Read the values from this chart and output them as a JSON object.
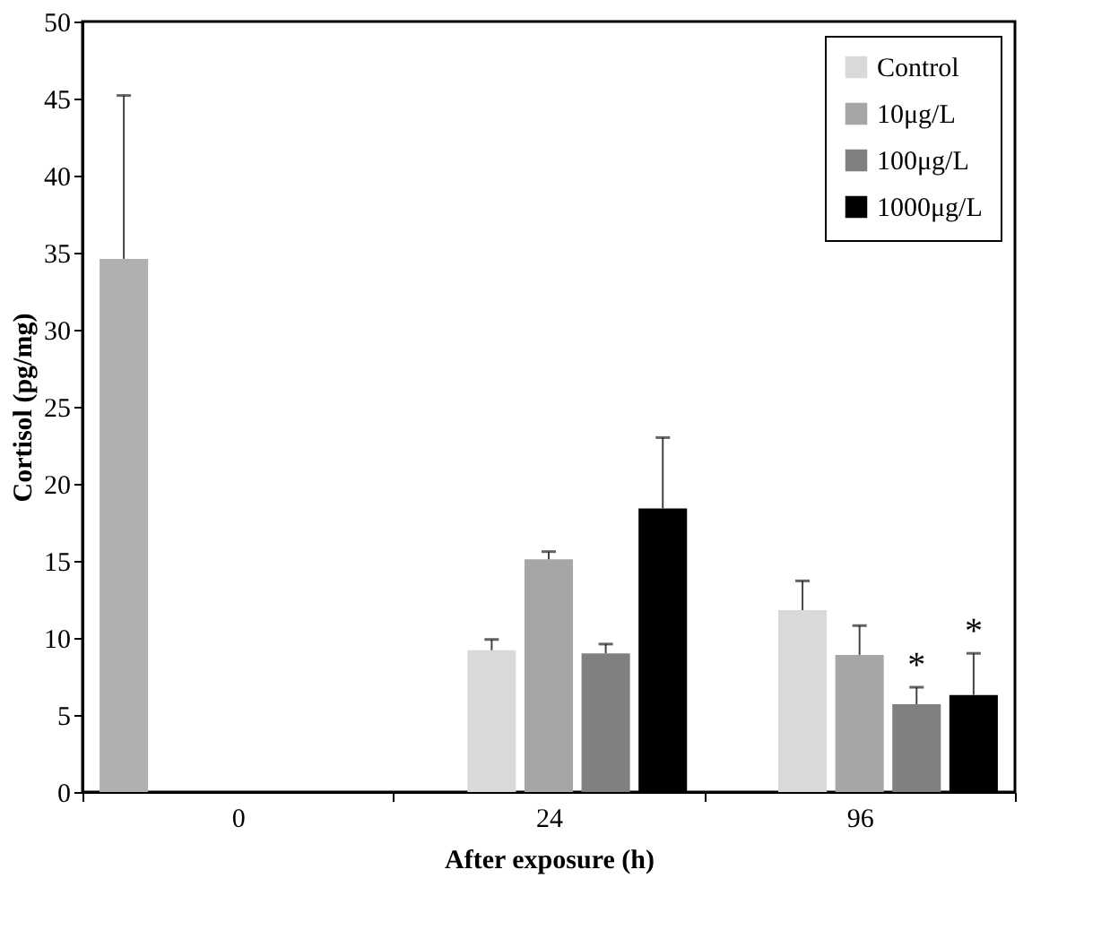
{
  "chart_data": {
    "type": "bar",
    "xlabel": "After exposure (h)",
    "ylabel": "Cortisol (pg/mg)",
    "categories": [
      "0",
      "24",
      "96"
    ],
    "series": [
      {
        "color": "#b0b0b0",
        "values": [
          34.6,
          null,
          null
        ],
        "errors": [
          [
            34.6,
            45.2
          ],
          null,
          null
        ]
      },
      {
        "name": "Control",
        "color": "#d9d9d9",
        "values": [
          null,
          9.2,
          11.8
        ],
        "errors": [
          null,
          [
            9.2,
            9.9
          ],
          [
            11.8,
            13.7
          ]
        ]
      },
      {
        "name": "10μg/L",
        "color": "#a6a6a6",
        "values": [
          null,
          15.1,
          8.9
        ],
        "errors": [
          null,
          [
            15.1,
            15.6
          ],
          [
            8.9,
            10.8
          ]
        ]
      },
      {
        "name": "100μg/L",
        "color": "#808080",
        "values": [
          null,
          9.0,
          5.7
        ],
        "errors": [
          null,
          [
            9.0,
            9.6
          ],
          [
            5.7,
            6.8
          ]
        ],
        "value_labels": [
          null,
          null,
          "*"
        ]
      },
      {
        "name": "1000μg/L",
        "color": "#000000",
        "values": [
          null,
          18.4,
          6.3
        ],
        "errors": [
          null,
          [
            18.4,
            23.0
          ],
          [
            6.3,
            9.0
          ]
        ],
        "value_labels": [
          null,
          null,
          "*"
        ]
      }
    ],
    "ylim": [
      0,
      50
    ],
    "yticks": [
      0,
      5,
      10,
      15,
      20,
      25,
      30,
      35,
      40,
      45,
      50
    ],
    "grid": false,
    "legend": "top right"
  }
}
